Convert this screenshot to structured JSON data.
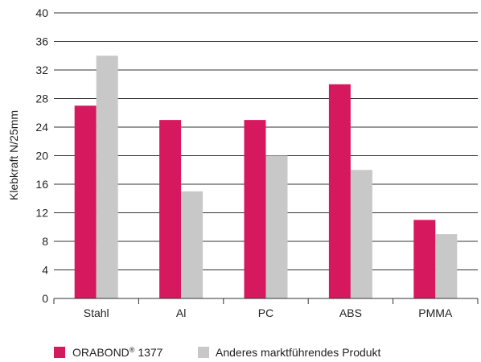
{
  "chart_data": {
    "type": "bar",
    "title": "",
    "xlabel": "",
    "ylabel": "Klebkraft N/25mm",
    "ylim": [
      0,
      40
    ],
    "yticks": [
      0,
      4,
      8,
      12,
      16,
      20,
      24,
      28,
      32,
      36,
      40
    ],
    "grid": true,
    "legend_position": "bottom-left",
    "categories": [
      "Stahl",
      "Al",
      "PC",
      "ABS",
      "PMMA"
    ],
    "series": [
      {
        "name": "ORABOND® 1377",
        "name_main": "ORABOND",
        "name_sup": "®",
        "name_suffix": " 1377",
        "color": "#d6195e",
        "values": [
          27,
          25,
          25,
          30,
          11
        ]
      },
      {
        "name": "Anderes marktführendes Produkt",
        "color": "#c8c8c8",
        "values": [
          34,
          15,
          20,
          18,
          9
        ]
      }
    ]
  }
}
